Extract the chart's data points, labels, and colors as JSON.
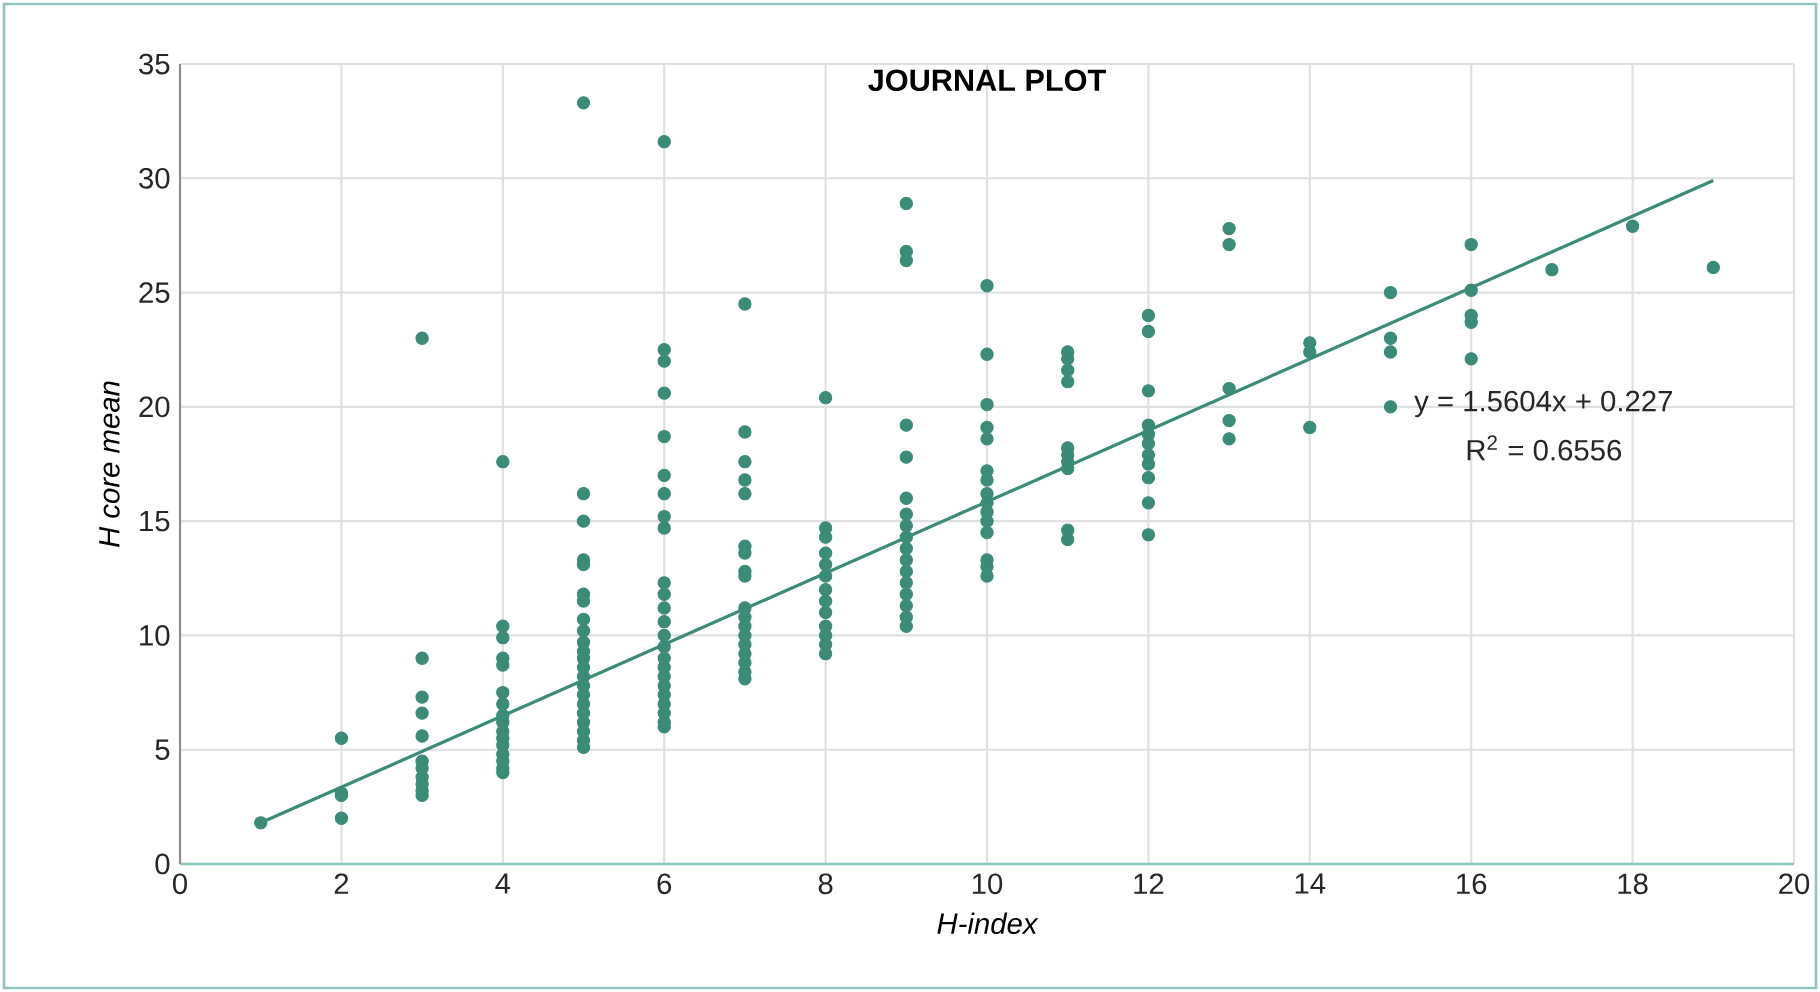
{
  "chart_data": {
    "type": "scatter",
    "title": "JOURNAL PLOT",
    "xlabel": "H-index",
    "ylabel": "H core mean",
    "xlim": [
      0,
      20
    ],
    "xticks": [
      0,
      2,
      4,
      6,
      8,
      10,
      12,
      14,
      16,
      18,
      20
    ],
    "ylim": [
      0,
      35
    ],
    "yticks": [
      0,
      5,
      10,
      15,
      20,
      25,
      30,
      35
    ],
    "grid": true,
    "annotations": [
      "y = 1.5604x + 0.227",
      "R$^{2}$ = 0.6556"
    ],
    "series": [
      {
        "color": "#3a8c78",
        "marker": "circle",
        "x": [
          1,
          2,
          2,
          2,
          2,
          3,
          3,
          3,
          3,
          3,
          3,
          3,
          3,
          3,
          3,
          3,
          4,
          4,
          4,
          4,
          4,
          4,
          4,
          4,
          4,
          4,
          4,
          4,
          4,
          4,
          4,
          4,
          5,
          5,
          5,
          5,
          5,
          5,
          5,
          5,
          5,
          5,
          5,
          5,
          5,
          5,
          5,
          5,
          5,
          5,
          5,
          5,
          5,
          5,
          6,
          6,
          6,
          6,
          6,
          6,
          6,
          6,
          6,
          6,
          6,
          6,
          6,
          6,
          6,
          6,
          6,
          6,
          6,
          6,
          6,
          6,
          6,
          6,
          7,
          7,
          7,
          7,
          7,
          7,
          7,
          7,
          7,
          7,
          7,
          7,
          7,
          7,
          7,
          7,
          7,
          7,
          8,
          8,
          8,
          8,
          8,
          8,
          8,
          8,
          8,
          8,
          8,
          8,
          8,
          9,
          9,
          9,
          9,
          9,
          9,
          9,
          9,
          9,
          9,
          9,
          9,
          9,
          9,
          9,
          9,
          9,
          10,
          10,
          10,
          10,
          10,
          10,
          10,
          10,
          10,
          10,
          10,
          10,
          10,
          10,
          10,
          11,
          11,
          11,
          11,
          11,
          11,
          11,
          11,
          11,
          11,
          12,
          12,
          12,
          12,
          12,
          12,
          12,
          12,
          12,
          12,
          12,
          13,
          13,
          13,
          13,
          13,
          14,
          14,
          14,
          15,
          15,
          15,
          15,
          16,
          16,
          16,
          16,
          16,
          17,
          18,
          19
        ],
        "values": [
          1.8,
          5.5,
          3.1,
          3.0,
          2.0,
          23.0,
          9.0,
          7.3,
          6.6,
          5.6,
          4.5,
          4.2,
          3.8,
          3.5,
          3.2,
          3.0,
          17.6,
          10.4,
          9.9,
          9.0,
          8.7,
          7.5,
          7.0,
          6.5,
          6.2,
          5.8,
          5.5,
          5.2,
          4.8,
          4.5,
          4.2,
          4.0,
          33.3,
          16.2,
          15.0,
          13.3,
          13.1,
          11.8,
          11.5,
          10.7,
          10.2,
          9.7,
          9.3,
          9.0,
          8.6,
          8.2,
          7.8,
          7.4,
          7.0,
          6.6,
          6.2,
          5.8,
          5.4,
          5.1,
          31.6,
          22.5,
          22.0,
          20.6,
          18.7,
          17.0,
          16.2,
          15.2,
          14.7,
          12.3,
          11.8,
          11.2,
          10.6,
          10.0,
          9.5,
          9.0,
          8.6,
          8.2,
          7.8,
          7.4,
          7.0,
          6.6,
          6.2,
          6.0,
          24.5,
          18.9,
          17.6,
          16.8,
          16.2,
          13.9,
          13.6,
          12.8,
          12.6,
          11.2,
          10.8,
          10.4,
          10.0,
          9.6,
          9.2,
          8.8,
          8.4,
          8.1,
          20.4,
          14.7,
          14.3,
          13.6,
          13.1,
          12.6,
          12.0,
          11.5,
          11.0,
          10.4,
          10.0,
          9.6,
          9.2,
          28.9,
          26.8,
          26.4,
          19.2,
          17.8,
          16.0,
          15.3,
          14.8,
          14.3,
          13.8,
          13.3,
          12.8,
          12.3,
          11.8,
          11.3,
          10.8,
          10.4,
          25.3,
          22.3,
          20.1,
          19.1,
          18.6,
          17.2,
          16.8,
          16.2,
          15.8,
          15.4,
          15.0,
          14.5,
          13.3,
          13.0,
          12.6,
          22.4,
          22.1,
          21.6,
          21.1,
          18.2,
          17.9,
          17.6,
          17.3,
          14.6,
          14.2,
          24.0,
          23.3,
          20.7,
          19.2,
          18.8,
          18.4,
          17.9,
          17.5,
          16.9,
          15.8,
          14.4,
          27.8,
          27.1,
          20.8,
          19.4,
          18.6,
          22.8,
          22.4,
          19.1,
          25.0,
          23.0,
          22.4,
          20.0,
          27.1,
          25.1,
          24.0,
          23.7,
          22.1,
          26.0,
          27.9,
          26.1
        ]
      },
      {
        "type": "line",
        "color": "#3a8c78",
        "marker": "none",
        "x": [
          1,
          19
        ],
        "values": [
          1.8,
          29.9
        ]
      }
    ]
  }
}
